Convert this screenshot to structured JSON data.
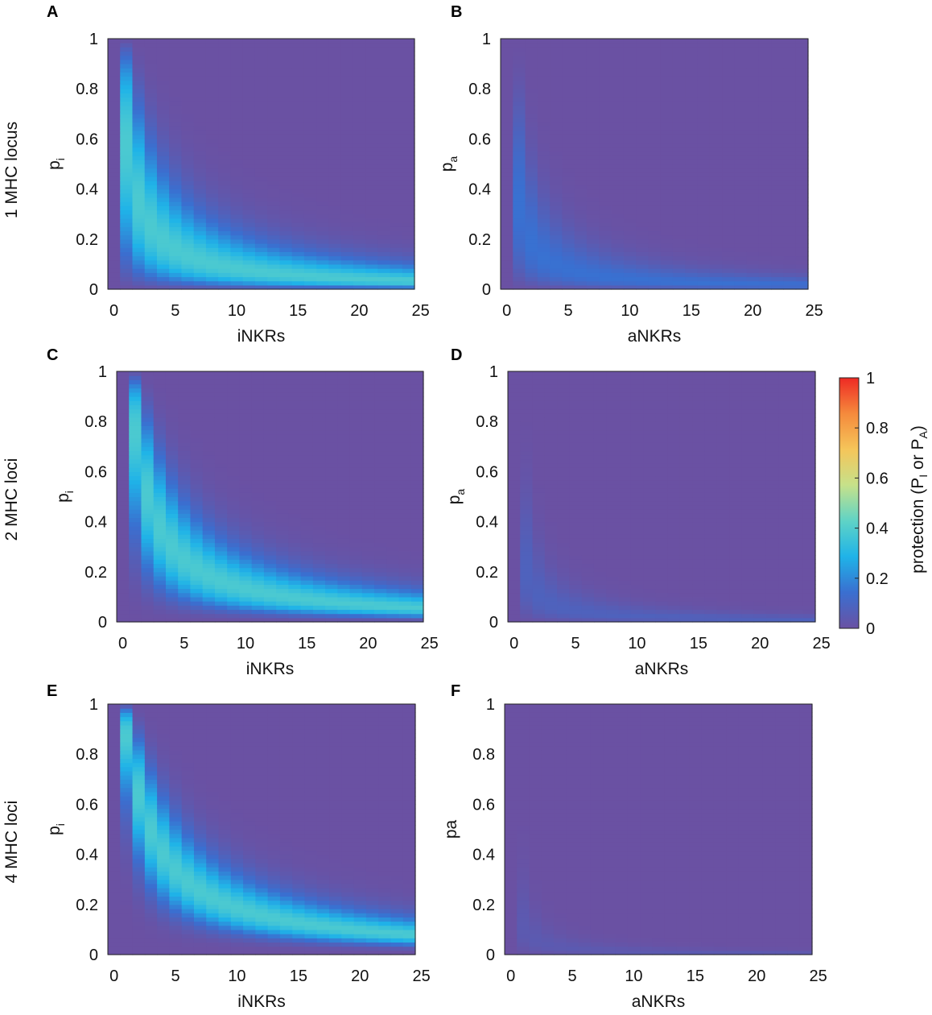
{
  "chart_data": [
    {
      "id": "A",
      "type": "heatmap",
      "panel_label": "A",
      "row_label": "1 MHC locus",
      "loci": 1,
      "mode": "inhibitory",
      "xlabel": "iNKRs",
      "ylabel": "p",
      "ylabel_sub": "i",
      "xlim": [
        0,
        24
      ],
      "ylim": [
        0,
        1
      ],
      "x_ticks": [
        "0",
        "5",
        "10",
        "15",
        "20",
        "25"
      ],
      "y_ticks": [
        "0",
        "0.2",
        "0.4",
        "0.6",
        "0.8",
        "1"
      ]
    },
    {
      "id": "B",
      "type": "heatmap",
      "panel_label": "B",
      "loci": 1,
      "mode": "activating",
      "xlabel": "aNKRs",
      "ylabel": "p",
      "ylabel_sub": "a",
      "xlim": [
        0,
        24
      ],
      "ylim": [
        0,
        1
      ],
      "x_ticks": [
        "0",
        "5",
        "10",
        "15",
        "20",
        "25"
      ],
      "y_ticks": [
        "0",
        "0.2",
        "0.4",
        "0.6",
        "0.8",
        "1"
      ]
    },
    {
      "id": "C",
      "type": "heatmap",
      "panel_label": "C",
      "row_label": "2 MHC loci",
      "loci": 2,
      "mode": "inhibitory",
      "xlabel": "iNKRs",
      "ylabel": "p",
      "ylabel_sub": "i",
      "xlim": [
        0,
        24
      ],
      "ylim": [
        0,
        1
      ],
      "x_ticks": [
        "0",
        "5",
        "10",
        "15",
        "20",
        "25"
      ],
      "y_ticks": [
        "0",
        "0.2",
        "0.4",
        "0.6",
        "0.8",
        "1"
      ]
    },
    {
      "id": "D",
      "type": "heatmap",
      "panel_label": "D",
      "loci": 2,
      "mode": "activating",
      "xlabel": "aNKRs",
      "ylabel": "p",
      "ylabel_sub": "a",
      "xlim": [
        0,
        24
      ],
      "ylim": [
        0,
        1
      ],
      "x_ticks": [
        "0",
        "5",
        "10",
        "15",
        "20",
        "25"
      ],
      "y_ticks": [
        "0",
        "0.2",
        "0.4",
        "0.6",
        "0.8",
        "1"
      ]
    },
    {
      "id": "E",
      "type": "heatmap",
      "panel_label": "E",
      "row_label": "4 MHC loci",
      "loci": 4,
      "mode": "inhibitory",
      "xlabel": "iNKRs",
      "ylabel": "p",
      "ylabel_sub": "i",
      "xlim": [
        0,
        24
      ],
      "ylim": [
        0,
        1
      ],
      "x_ticks": [
        "0",
        "5",
        "10",
        "15",
        "20",
        "25"
      ],
      "y_ticks": [
        "0",
        "0.2",
        "0.4",
        "0.6",
        "0.8",
        "1"
      ]
    },
    {
      "id": "F",
      "type": "heatmap",
      "panel_label": "F",
      "loci": 4,
      "mode": "activating",
      "xlabel": "aNKRs",
      "ylabel": "pa",
      "ylabel_sub": "",
      "xlim": [
        0,
        24
      ],
      "ylim": [
        0,
        1
      ],
      "x_ticks": [
        "0",
        "5",
        "10",
        "15",
        "20",
        "25"
      ],
      "y_ticks": [
        "0",
        "0.2",
        "0.4",
        "0.6",
        "0.8",
        "1"
      ]
    }
  ],
  "colorbar": {
    "label_main": "protection (P",
    "label_sub1": "I",
    "label_mid": " or P",
    "label_sub2": "A",
    "label_end": ")",
    "ticks": [
      "0",
      "0.2",
      "0.4",
      "0.6",
      "0.8",
      "1"
    ],
    "range": [
      0,
      1
    ],
    "colors": [
      "#6a51a3",
      "#3a6fd0",
      "#1fb3e8",
      "#5fd3c6",
      "#c6e18a",
      "#f5c55a",
      "#f58a3c",
      "#ee2a24"
    ]
  }
}
